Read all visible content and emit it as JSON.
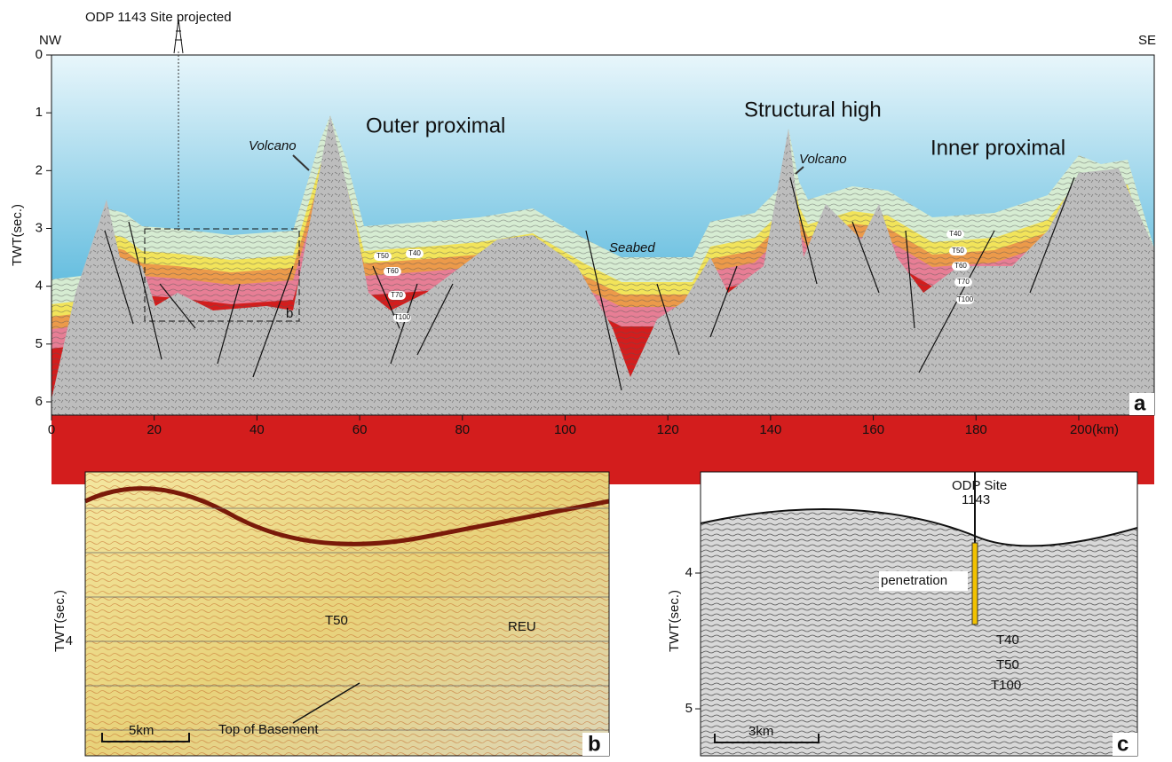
{
  "panel_a": {
    "site": "ODP 1143 Site projected",
    "left_dir": "NW",
    "right_dir": "SE",
    "y_label": "TWT(sec.)",
    "xlim": [
      0,
      214.7
    ],
    "ylim": [
      0,
      6.23
    ],
    "xticks": [
      0,
      20,
      40,
      60,
      80,
      100,
      120,
      140,
      160,
      180,
      {
        "value": 200,
        "label": "200(km)"
      }
    ],
    "yticks": [
      0,
      1,
      2,
      3,
      4,
      5,
      6
    ],
    "volcano_left": "Volcano",
    "volcano_right": "Volcano",
    "outer": "Outer proximal",
    "structural": "Structural high",
    "inner": "Inner proximal",
    "seabed": "Seabed",
    "inset_label": "b",
    "panel_label": "a",
    "horizons_left": [
      "T50",
      "T40",
      "T60",
      "T70",
      "T100"
    ],
    "horizons_right": [
      "T40",
      "T50",
      "T60",
      "T70",
      "T100"
    ]
  },
  "panel_b": {
    "y_label": "TWT(sec.)",
    "ytick": "4",
    "t50": "T50",
    "reu": "REU",
    "basement": "Top of Basement",
    "scale": "5km",
    "panel_label": "b"
  },
  "panel_c": {
    "site": "ODP Site",
    "site_num": "1143",
    "penetration": "penetration",
    "y_label": "TWT(sec.)",
    "ylim": [
      3.255,
      5.346
    ],
    "yticks": [
      4,
      5
    ],
    "t40": "T40",
    "t50": "T50",
    "t100": "T100",
    "scale": "3km",
    "panel_label": "c"
  }
}
